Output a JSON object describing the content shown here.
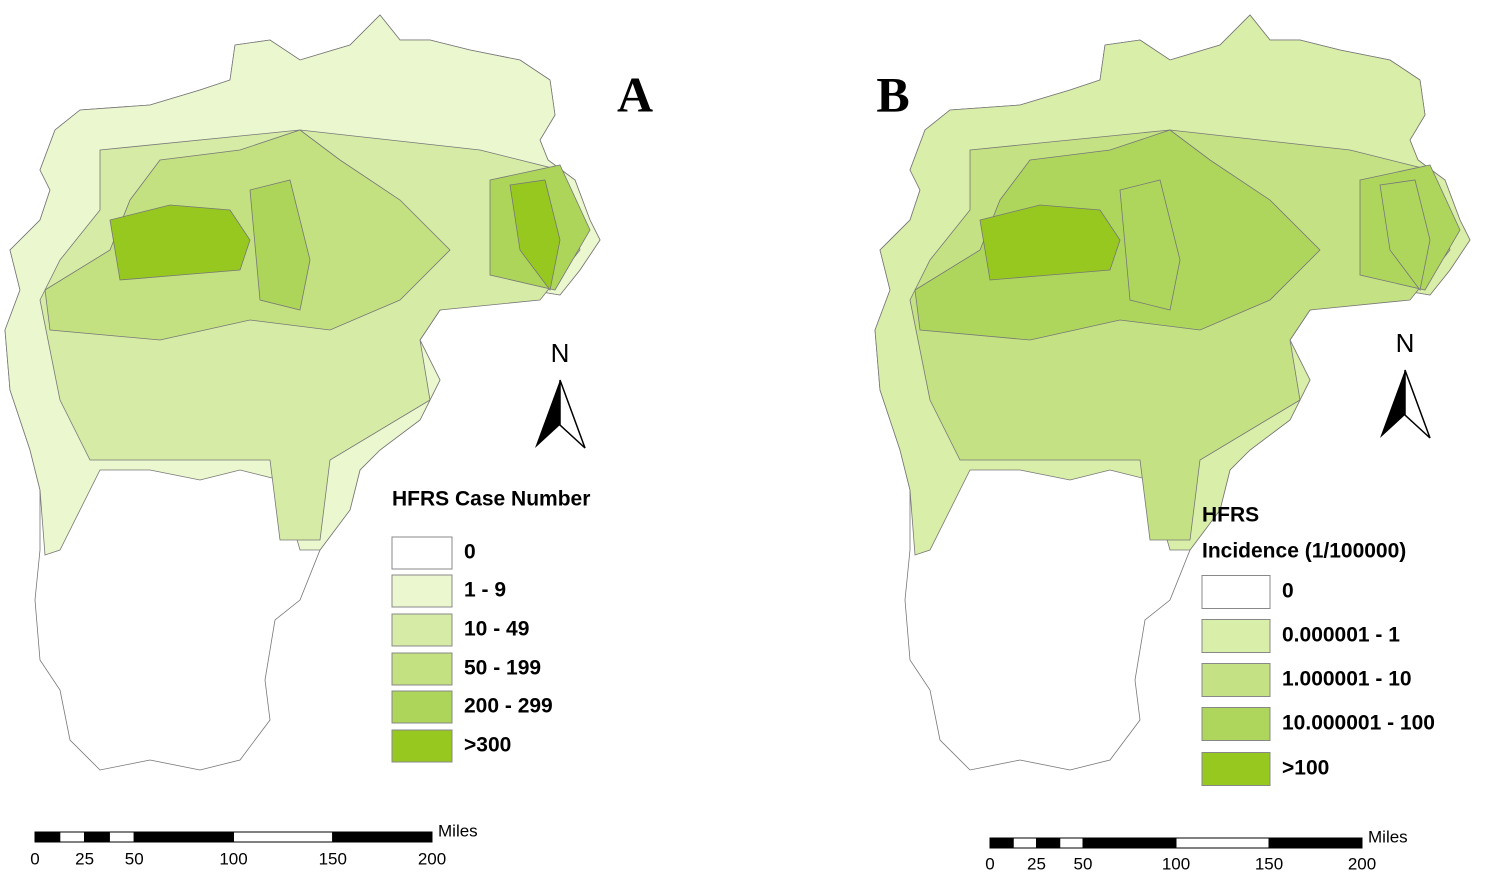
{
  "panels": [
    {
      "label": "A",
      "legend": {
        "title_lines": [
          "HFRS  Case Number"
        ],
        "items": [
          {
            "label": "0",
            "color": "#ffffff"
          },
          {
            "label": "1 - 9",
            "color": "#ebf7cf"
          },
          {
            "label": "10 - 49",
            "color": "#d6eca6"
          },
          {
            "label": "50 - 199",
            "color": "#c3e180"
          },
          {
            "label": "200 - 299",
            "color": "#add55a"
          },
          {
            "label": ">300",
            "color": "#97c820"
          }
        ]
      },
      "north": "N",
      "scale": {
        "unit": "Miles",
        "ticks": [
          0,
          25,
          50,
          100,
          150,
          200
        ]
      }
    },
    {
      "label": "B",
      "legend": {
        "title_lines": [
          "HFRS",
          "Incidence (1/100000)"
        ],
        "items": [
          {
            "label": "0",
            "color": "#ffffff"
          },
          {
            "label": "0.000001 - 1",
            "color": "#d9eea8"
          },
          {
            "label": "1.000001 - 10",
            "color": "#c4e284"
          },
          {
            "label": "10.000001 - 100",
            "color": "#aed65d"
          },
          {
            "label": ">100",
            "color": "#97c820"
          }
        ]
      },
      "north": "N",
      "scale": {
        "unit": "Miles",
        "ticks": [
          0,
          25,
          50,
          100,
          150,
          200
        ]
      }
    }
  ]
}
